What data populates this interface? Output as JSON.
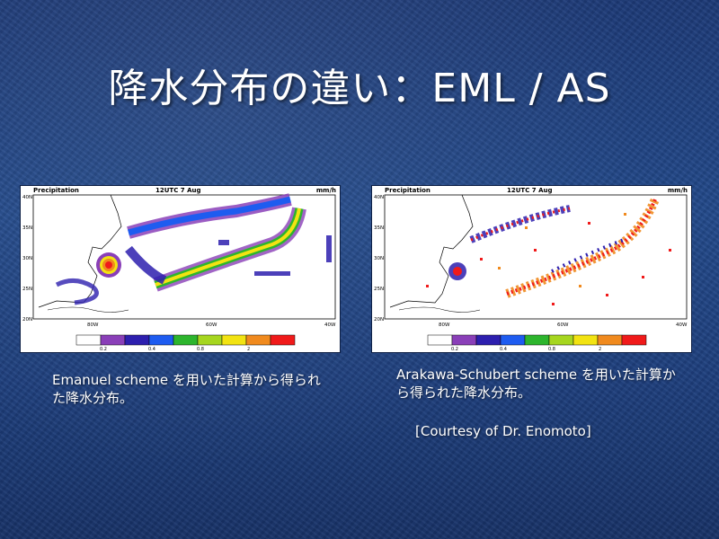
{
  "slide": {
    "title": "降水分布の違い：EML / AS"
  },
  "plot_header": {
    "left": "Precipitation",
    "center": "12UTC 7 Aug",
    "units": "mm/h"
  },
  "lat_ticks": [
    "40N",
    "35N",
    "30N",
    "25N",
    "20N"
  ],
  "lon_ticks": [
    "80W",
    "60W",
    "40W"
  ],
  "colorbar": {
    "colors": [
      "#ffffff",
      "#8a3fb8",
      "#2d1fae",
      "#1e5cf0",
      "#2db52d",
      "#a6d61f",
      "#f2e312",
      "#f08a1e",
      "#f01a1a"
    ],
    "labels": [
      "0.2",
      "0.4",
      "0.8",
      "2"
    ]
  },
  "captions": {
    "left": "Emanuel scheme を用いた計算から得られた降水分布。",
    "right": "Arakawa-Schubert scheme を用いた計算から得られた降水分布。",
    "courtesy": "[Courtesy of Dr. Enomoto]"
  }
}
